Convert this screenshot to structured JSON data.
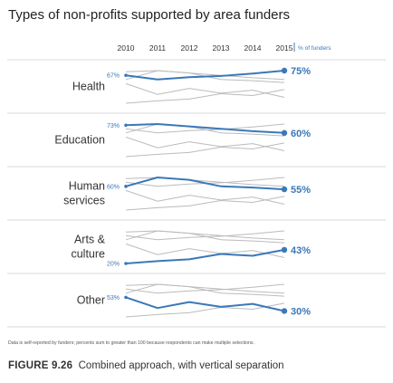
{
  "chart_data": {
    "type": "line",
    "title": "Types of non-profits supported by area funders",
    "x": [
      "2010",
      "2011",
      "2012",
      "2013",
      "2014",
      "2015"
    ],
    "unit_label": "% of funders",
    "colors": {
      "highlight": "#3b78b8",
      "context": "#bbbbbb",
      "divider": "#d9d9d9"
    },
    "series": [
      {
        "name": "Health",
        "lines": [
          "Health"
        ],
        "values": [
          67,
          60,
          64,
          66,
          70,
          75
        ],
        "start_label": "67%",
        "end_label": "75%"
      },
      {
        "name": "Education",
        "lines": [
          "Education"
        ],
        "values": [
          73,
          75,
          71,
          67,
          63,
          60
        ],
        "start_label": "73%",
        "end_label": "60%"
      },
      {
        "name": "Human services",
        "lines": [
          "Human",
          "services"
        ],
        "values": [
          60,
          75,
          71,
          60,
          58,
          55
        ],
        "start_label": "60%",
        "end_label": "55%"
      },
      {
        "name": "Arts & culture",
        "lines": [
          "Arts &",
          "culture"
        ],
        "values": [
          20,
          24,
          27,
          36,
          33,
          43
        ],
        "start_label": "20%",
        "end_label": "43%"
      },
      {
        "name": "Other",
        "lines": [
          "Other"
        ],
        "values": [
          53,
          35,
          45,
          37,
          42,
          30
        ],
        "start_label": "53%",
        "end_label": "30%"
      }
    ]
  },
  "footnote": "Data is self-reported by funders; percents sum to greater than 100 because respondents can make multiple selections.",
  "caption": {
    "figure": "FIGURE 9.26",
    "text": "Combined approach, with vertical separation"
  }
}
